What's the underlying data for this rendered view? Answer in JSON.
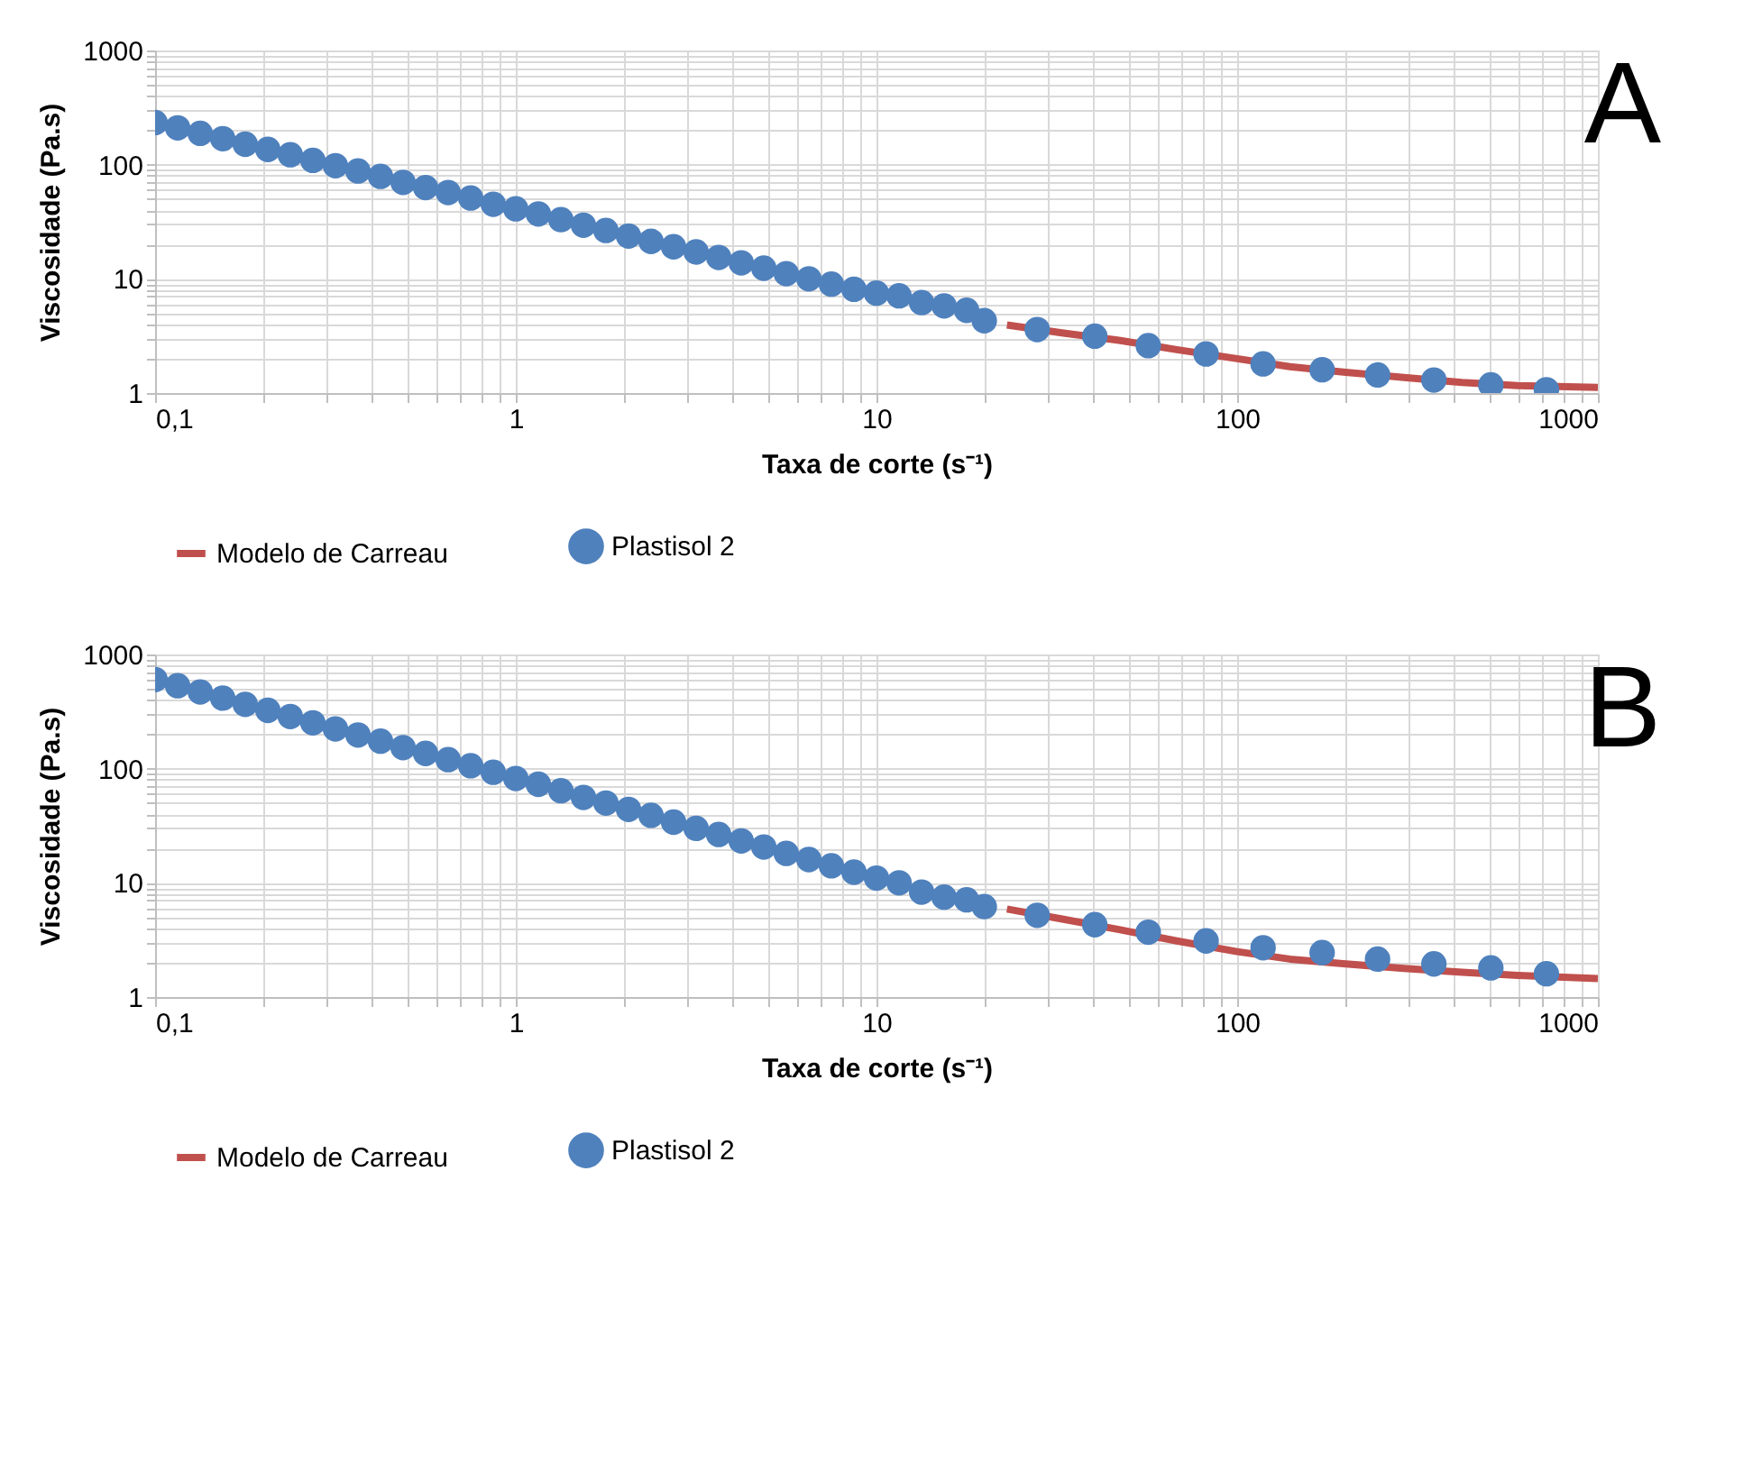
{
  "chart_data": [
    {
      "type": "scatter",
      "xlabel": "Taxa de corte (s⁻¹)",
      "ylabel": "Viscosidade (Pa.s)",
      "annotations": [
        "A"
      ],
      "log": "xy",
      "grid": true,
      "legend": "bottom",
      "xlim": [
        0.1,
        1000
      ],
      "ylim": [
        1,
        1000
      ],
      "xticks": [
        {
          "value": 0.1,
          "label": "0,1"
        },
        {
          "value": 0.2,
          "label": null
        },
        {
          "value": 0.3,
          "label": null
        },
        {
          "value": 0.4,
          "label": null
        },
        {
          "value": 0.5,
          "label": null
        },
        {
          "value": 0.6,
          "label": null
        },
        {
          "value": 0.7,
          "label": null
        },
        {
          "value": 0.8,
          "label": null
        },
        {
          "value": 0.9,
          "label": null
        },
        1,
        {
          "value": 2,
          "label": null
        },
        {
          "value": 3,
          "label": null
        },
        {
          "value": 4,
          "label": null
        },
        {
          "value": 5,
          "label": null
        },
        {
          "value": 6,
          "label": null
        },
        {
          "value": 7,
          "label": null
        },
        {
          "value": 8,
          "label": null
        },
        {
          "value": 9,
          "label": null
        },
        10,
        {
          "value": 20,
          "label": null
        },
        {
          "value": 30,
          "label": null
        },
        {
          "value": 40,
          "label": null
        },
        {
          "value": 50,
          "label": null
        },
        {
          "value": 60,
          "label": null
        },
        {
          "value": 70,
          "label": null
        },
        {
          "value": 80,
          "label": null
        },
        {
          "value": 90,
          "label": null
        },
        100,
        {
          "value": 200,
          "label": null
        },
        {
          "value": 300,
          "label": null
        },
        {
          "value": 400,
          "label": null
        },
        {
          "value": 500,
          "label": null
        },
        {
          "value": 600,
          "label": null
        },
        {
          "value": 700,
          "label": null
        },
        {
          "value": 800,
          "label": null
        },
        {
          "value": 900,
          "label": null
        },
        1000
      ],
      "yticks": [
        1,
        {
          "value": 2,
          "label": null
        },
        {
          "value": 3,
          "label": null
        },
        {
          "value": 4,
          "label": null
        },
        {
          "value": 5,
          "label": null
        },
        {
          "value": 6,
          "label": null
        },
        {
          "value": 7,
          "label": null
        },
        {
          "value": 8,
          "label": null
        },
        {
          "value": 9,
          "label": null
        },
        10,
        {
          "value": 20,
          "label": null
        },
        {
          "value": 30,
          "label": null
        },
        {
          "value": 40,
          "label": null
        },
        {
          "value": 50,
          "label": null
        },
        {
          "value": 60,
          "label": null
        },
        {
          "value": 70,
          "label": null
        },
        {
          "value": 80,
          "label": null
        },
        {
          "value": 90,
          "label": null
        },
        100,
        {
          "value": 200,
          "label": null
        },
        {
          "value": 300,
          "label": null
        },
        {
          "value": 400,
          "label": null
        },
        {
          "value": 500,
          "label": null
        },
        {
          "value": 600,
          "label": null
        },
        {
          "value": 700,
          "label": null
        },
        {
          "value": 800,
          "label": null
        },
        {
          "value": 900,
          "label": null
        },
        1000
      ],
      "series": [
        {
          "name": "Modelo de Carreau",
          "type": "line",
          "line_style": "solid",
          "color": "#c0504d",
          "x": [
            23,
            33,
            47,
            68,
            100,
            140,
            200,
            290,
            420,
            600,
            1000
          ],
          "values": [
            3.95,
            3.35,
            2.9,
            2.4,
            2.0,
            1.7,
            1.52,
            1.37,
            1.24,
            1.16,
            1.12
          ]
        },
        {
          "name": "Plastisol 2",
          "marker": "circle",
          "color": "#4f81bd",
          "x": [
            0.1,
            0.1155,
            0.1334,
            0.154,
            0.1778,
            0.2054,
            0.2371,
            0.2738,
            0.3162,
            0.3652,
            0.4217,
            0.487,
            0.5623,
            0.6494,
            0.7499,
            0.866,
            1,
            1.155,
            1.334,
            1.54,
            1.778,
            2.054,
            2.371,
            2.738,
            3.162,
            3.652,
            4.217,
            4.87,
            5.623,
            6.494,
            7.499,
            8.66,
            10,
            11.55,
            13.34,
            15.4,
            17.78,
            19.9,
            27.9,
            40.3,
            56.7,
            82,
            118,
            172,
            245,
            351,
            505,
            720
          ],
          "values": [
            234,
            210,
            188,
            169,
            151,
            136,
            122,
            109,
            98,
            88,
            79,
            70,
            63,
            57,
            51,
            45,
            41,
            37,
            33,
            29.5,
            26.5,
            23.7,
            21.3,
            19.1,
            17.2,
            15.4,
            13.8,
            12.4,
            11.1,
            10,
            9.0,
            8.1,
            7.5,
            7.1,
            6.2,
            5.8,
            5.3,
            4.3,
            3.6,
            3.15,
            2.6,
            2.2,
            1.8,
            1.6,
            1.44,
            1.3,
            1.18,
            1.07
          ]
        }
      ]
    },
    {
      "type": "scatter",
      "xlabel": "Taxa de corte (s⁻¹)",
      "ylabel": "Viscosidade (Pa.s)",
      "annotations": [
        "B"
      ],
      "log": "xy",
      "grid": true,
      "legend": "bottom",
      "xlim": [
        0.1,
        1000
      ],
      "ylim": [
        1,
        1000
      ],
      "xticks": [
        {
          "value": 0.1,
          "label": "0,1"
        },
        {
          "value": 0.2,
          "label": null
        },
        {
          "value": 0.3,
          "label": null
        },
        {
          "value": 0.4,
          "label": null
        },
        {
          "value": 0.5,
          "label": null
        },
        {
          "value": 0.6,
          "label": null
        },
        {
          "value": 0.7,
          "label": null
        },
        {
          "value": 0.8,
          "label": null
        },
        {
          "value": 0.9,
          "label": null
        },
        1,
        {
          "value": 2,
          "label": null
        },
        {
          "value": 3,
          "label": null
        },
        {
          "value": 4,
          "label": null
        },
        {
          "value": 5,
          "label": null
        },
        {
          "value": 6,
          "label": null
        },
        {
          "value": 7,
          "label": null
        },
        {
          "value": 8,
          "label": null
        },
        {
          "value": 9,
          "label": null
        },
        10,
        {
          "value": 20,
          "label": null
        },
        {
          "value": 30,
          "label": null
        },
        {
          "value": 40,
          "label": null
        },
        {
          "value": 50,
          "label": null
        },
        {
          "value": 60,
          "label": null
        },
        {
          "value": 70,
          "label": null
        },
        {
          "value": 80,
          "label": null
        },
        {
          "value": 90,
          "label": null
        },
        100,
        {
          "value": 200,
          "label": null
        },
        {
          "value": 300,
          "label": null
        },
        {
          "value": 400,
          "label": null
        },
        {
          "value": 500,
          "label": null
        },
        {
          "value": 600,
          "label": null
        },
        {
          "value": 700,
          "label": null
        },
        {
          "value": 800,
          "label": null
        },
        {
          "value": 900,
          "label": null
        },
        1000
      ],
      "yticks": [
        1,
        {
          "value": 2,
          "label": null
        },
        {
          "value": 3,
          "label": null
        },
        {
          "value": 4,
          "label": null
        },
        {
          "value": 5,
          "label": null
        },
        {
          "value": 6,
          "label": null
        },
        {
          "value": 7,
          "label": null
        },
        {
          "value": 8,
          "label": null
        },
        {
          "value": 9,
          "label": null
        },
        10,
        {
          "value": 20,
          "label": null
        },
        {
          "value": 30,
          "label": null
        },
        {
          "value": 40,
          "label": null
        },
        {
          "value": 50,
          "label": null
        },
        {
          "value": 60,
          "label": null
        },
        {
          "value": 70,
          "label": null
        },
        {
          "value": 80,
          "label": null
        },
        {
          "value": 90,
          "label": null
        },
        100,
        {
          "value": 200,
          "label": null
        },
        {
          "value": 300,
          "label": null
        },
        {
          "value": 400,
          "label": null
        },
        {
          "value": 500,
          "label": null
        },
        {
          "value": 600,
          "label": null
        },
        {
          "value": 700,
          "label": null
        },
        {
          "value": 800,
          "label": null
        },
        {
          "value": 900,
          "label": null
        },
        1000
      ],
      "series": [
        {
          "name": "Modelo de Carreau",
          "type": "line",
          "line_style": "solid",
          "color": "#c0504d",
          "x": [
            23,
            33,
            47,
            68,
            100,
            140,
            200,
            290,
            420,
            600,
            1000
          ],
          "values": [
            5.9,
            4.8,
            3.9,
            3.1,
            2.5,
            2.15,
            1.95,
            1.78,
            1.65,
            1.55,
            1.45
          ]
        },
        {
          "name": "Plastisol 2",
          "marker": "circle",
          "color": "#4f81bd",
          "x": [
            0.1,
            0.1155,
            0.1334,
            0.154,
            0.1778,
            0.2054,
            0.2371,
            0.2738,
            0.3162,
            0.3652,
            0.4217,
            0.487,
            0.5623,
            0.6494,
            0.7499,
            0.866,
            1,
            1.155,
            1.334,
            1.54,
            1.778,
            2.054,
            2.371,
            2.738,
            3.162,
            3.652,
            4.217,
            4.87,
            5.623,
            6.494,
            7.499,
            8.66,
            10,
            11.55,
            13.34,
            15.4,
            17.78,
            19.9,
            27.9,
            40.3,
            56.7,
            82,
            118,
            172,
            245,
            351,
            505,
            720
          ],
          "values": [
            603,
            532,
            470,
            415,
            366,
            324,
            286,
            252,
            223,
            197,
            174,
            153,
            136,
            120,
            106,
            93,
            82,
            73,
            64,
            56,
            50,
            44,
            39,
            34,
            30,
            26.5,
            23.3,
            20.6,
            18.1,
            16,
            14.1,
            12.4,
            11,
            10,
            8.3,
            7.5,
            7.1,
            6.2,
            5.2,
            4.3,
            3.7,
            3.1,
            2.7,
            2.45,
            2.15,
            1.95,
            1.8,
            1.6
          ]
        }
      ]
    }
  ]
}
